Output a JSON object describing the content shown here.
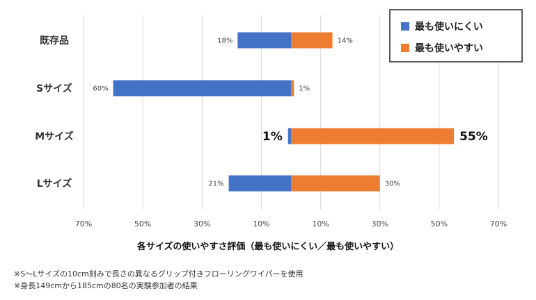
{
  "chart_data": {
    "type": "bar",
    "orientation": "horizontal-diverging",
    "categories": [
      "既存品",
      "Sサイズ",
      "Mサイズ",
      "Lサイズ"
    ],
    "series": [
      {
        "name": "最も使いにくい",
        "color": "#4472C4",
        "values": [
          18,
          60,
          1,
          21
        ],
        "labels": [
          "18%",
          "60%",
          "1%",
          "21%"
        ]
      },
      {
        "name": "最も使いやすい",
        "color": "#ED7D31",
        "values": [
          14,
          1,
          55,
          30
        ],
        "labels": [
          "14%",
          "1%",
          "55%",
          "30%"
        ]
      }
    ],
    "emphasized_category": "Mサイズ",
    "xlim": [
      -70,
      70
    ],
    "xticks": [
      -70,
      -50,
      -30,
      -10,
      10,
      30,
      50,
      70
    ],
    "xtick_labels": [
      "70%",
      "50%",
      "30%",
      "10%",
      "10%",
      "30%",
      "50%",
      "70%"
    ],
    "xlabel": "各サイズの使いやすさ評価（最も使いにくい／最も使いやすい）",
    "grid": true,
    "legend_position": "top-right"
  },
  "notes": [
    "※S～Lサイズの10cm刻みで長さの異なるグリップ付きフローリングワイパーを使用",
    "※身長149cmから185cmの80名の実験参加者の結果"
  ]
}
